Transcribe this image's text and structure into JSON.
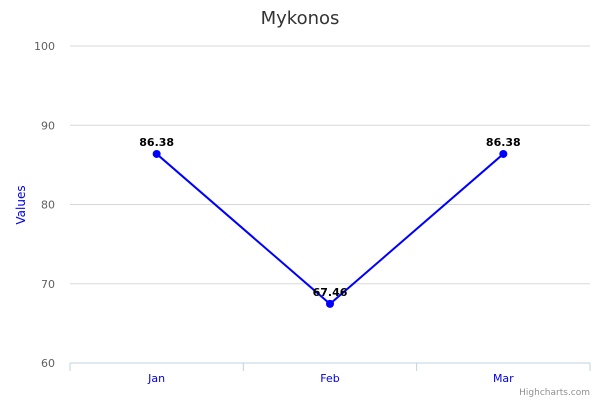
{
  "chart_data": {
    "type": "line",
    "title": "Mykonos",
    "ylabel": "Values",
    "xlabel": "",
    "categories": [
      "Jan",
      "Feb",
      "Mar"
    ],
    "series": [
      {
        "values": [
          86.38,
          67.46,
          86.38
        ],
        "color": "#0000ff"
      }
    ],
    "ylim": [
      60,
      100
    ],
    "yticks": [
      60,
      70,
      80,
      90,
      100
    ],
    "grid": true,
    "legend": "none"
  },
  "credits": "Highcharts.com",
  "colors": {
    "series": "#0000ff",
    "axis_label": "#0000e6",
    "grid": "#d8d8d8",
    "axis_line": "#c0d0e0"
  }
}
